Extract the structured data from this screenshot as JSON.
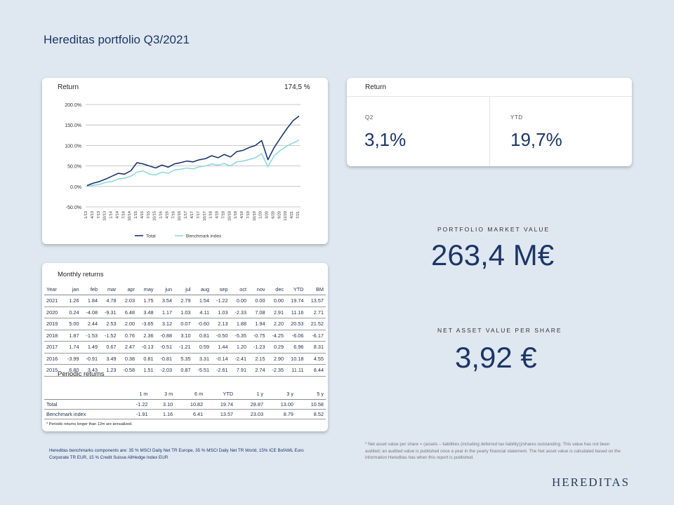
{
  "page_title": "Hereditas portfolio Q3/2021",
  "return_chart_card": {
    "label": "Return",
    "value": "174,5 %"
  },
  "chart_data": {
    "type": "line",
    "ylim": [
      -50,
      200
    ],
    "y_ticks": [
      "200.0%",
      "150.0%",
      "100.0%",
      "50.0%",
      "0.0%",
      "-50.0%"
    ],
    "x_ticks": [
      "1/13",
      "4/13",
      "7/13",
      "10/13",
      "1/14",
      "4/14",
      "7/14",
      "10/14",
      "1/15",
      "4/15",
      "7/15",
      "10/15",
      "1/16",
      "4/16",
      "7/16",
      "10/16",
      "1/17",
      "4/17",
      "7/17",
      "10/17",
      "1/18",
      "4/18",
      "7/18",
      "10/18",
      "1/19",
      "4/19",
      "7/19",
      "10/19",
      "1/20",
      "3/20",
      "6/20",
      "9/20",
      "12/20",
      "4/21",
      "7/21"
    ],
    "series": [
      {
        "name": "Total",
        "color": "#1d3570",
        "values": [
          2,
          8,
          12,
          18,
          25,
          32,
          30,
          38,
          58,
          55,
          50,
          45,
          52,
          47,
          55,
          58,
          62,
          60,
          65,
          68,
          75,
          70,
          78,
          72,
          85,
          88,
          95,
          100,
          112,
          65,
          95,
          118,
          140,
          160,
          172
        ]
      },
      {
        "name": "Benchmark index",
        "color": "#8fd8e0",
        "values": [
          0,
          3,
          5,
          10,
          12,
          18,
          20,
          25,
          35,
          38,
          30,
          28,
          35,
          32,
          40,
          42,
          45,
          43,
          48,
          50,
          55,
          52,
          56,
          50,
          60,
          62,
          66,
          70,
          80,
          48,
          75,
          88,
          98,
          106,
          113
        ]
      }
    ],
    "legend": "bottom-center"
  },
  "return_card": {
    "label": "Return",
    "q2_label": "Q2",
    "q2_value": "3,1%",
    "ytd_label": "YTD",
    "ytd_value": "19,7%"
  },
  "portfolio_market_value": {
    "label": "PORTFOLIO MARKET VALUE",
    "value": "263,4 M€"
  },
  "nav_per_share": {
    "label": "NET ASSET VALUE PER SHARE",
    "value": "3,92 €"
  },
  "monthly_returns": {
    "title": "Monthly returns",
    "headers": [
      "Year",
      "jan",
      "feb",
      "mar",
      "apr",
      "may",
      "jun",
      "jul",
      "aug",
      "sep",
      "oct",
      "nov",
      "dec",
      "YTD",
      "BM"
    ],
    "rows": [
      [
        "2021",
        "1.26",
        "1.84",
        "4.78",
        "2.03",
        "1.75",
        "3.54",
        "2.79",
        "1.54",
        "-1.22",
        "0.00",
        "0.00",
        "0.00",
        "19.74",
        "13.57"
      ],
      [
        "2020",
        "0.24",
        "-4.08",
        "-9.31",
        "6.48",
        "3.48",
        "1.17",
        "1.03",
        "4.11",
        "1.03",
        "-2.33",
        "7.08",
        "2.91",
        "11.16",
        "2.71"
      ],
      [
        "2019",
        "5.00",
        "2.44",
        "2.53",
        "2.00",
        "-3.65",
        "3.12",
        "0.07",
        "-0.60",
        "2.13",
        "1.88",
        "1.94",
        "2.20",
        "20.53",
        "21.52"
      ],
      [
        "2018",
        "1.87",
        "-1.53",
        "-1.52",
        "0.76",
        "2.36",
        "-0.88",
        "3.10",
        "0.81",
        "-0.50",
        "-5.35",
        "-0.75",
        "-4.25",
        "-6.06",
        "-6.17"
      ],
      [
        "2017",
        "1.74",
        "1.49",
        "0.67",
        "2.47",
        "-0.13",
        "-0.51",
        "-1.21",
        "0.59",
        "1.44",
        "1.20",
        "-1.23",
        "0.29",
        "6.96",
        "8.31"
      ],
      [
        "2016",
        "-3.99",
        "-0.91",
        "3.49",
        "0.38",
        "0.81",
        "-0.81",
        "5.35",
        "3.31",
        "-0.14",
        "-2.41",
        "2.15",
        "2.90",
        "10.18",
        "4.55"
      ],
      [
        "2015",
        "6.80",
        "3.43",
        "1.23",
        "-0.58",
        "1.51",
        "-2.03",
        "0.87",
        "-5.51",
        "-2.61",
        "7.91",
        "2.74",
        "-2.35",
        "11.11",
        "8.44"
      ]
    ]
  },
  "periodic_returns": {
    "title": "Periodic returns",
    "headers": [
      "",
      "1 m",
      "3 m",
      "6 m",
      "YTD",
      "1 y",
      "3 y",
      "5 y"
    ],
    "rows": [
      [
        "Total",
        "-1.22",
        "3.10",
        "10.82",
        "19.74",
        "28.87",
        "13.00",
        "10.58"
      ],
      [
        "Benchmark index",
        "-1.91",
        "1.16",
        "6.41",
        "13.57",
        "23.03",
        "8.79",
        "8.52"
      ]
    ],
    "footnote": "* Periodic returns longer than 12m are annualized."
  },
  "benchmark_note": "Hereditas benchmarks components are: 35 % MSCI Daily Net TR Europe, 35 % MSCI Daily Net TR World, 15% ICE BofAML Euro Corporate TR EUR, 15 % Credit Suisse AllHedge Index EUR",
  "nav_note": "* Net asset value per share = (assets – liabilities (including deferred tax liability))/shares outstanding. This value has not been audited; an audited value is published once a year in the yearly financial statement. The Net asset value is calculated based on the information Hereditas has when this report is published.",
  "logo_text": "HEREDITAS"
}
